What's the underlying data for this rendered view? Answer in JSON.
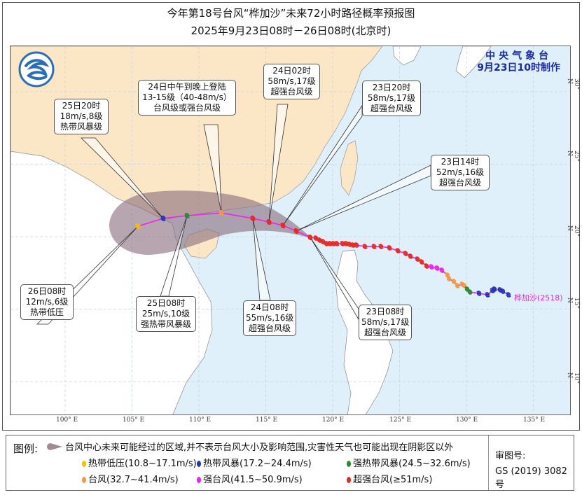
{
  "title": {
    "line1": "今年第18号台风“桦加沙”未来72小时路径概率预报图",
    "line2": "2025年9月23日08时－26日08时(北京时)"
  },
  "agency": {
    "name": "中央气象台",
    "issued": "9月23日10时制作",
    "logo": "cma-logo"
  },
  "storm_label": "桦加沙(2518)",
  "axes": {
    "lon_ticks": [
      "100° E",
      "105° E",
      "110° E",
      "115° E",
      "120° E",
      "125° E",
      "130° E",
      "135° E"
    ],
    "lat_ticks": [
      "30° N",
      "25° N",
      "20° N",
      "15° N",
      "10° N"
    ]
  },
  "colors": {
    "td": "#f2c200",
    "ts": "#2233bb",
    "sts": "#2a8a2a",
    "ty": "#f59a40",
    "sty": "#ee22ee",
    "super": "#e8261e",
    "track": "#ee22ee",
    "cone": "#8a6f80",
    "sea": "#dff0fa",
    "china_land": "#fbe6c5",
    "other_land": "#ffffff"
  },
  "forecast": [
    {
      "time": "26日08时",
      "speed": "12m/s,6级",
      "level": "热带低压",
      "cat": "td",
      "lon": 105.45,
      "lat": 20.72
    },
    {
      "time": "25日20时",
      "speed": "18m/s,8级",
      "level": "热带风暴级",
      "cat": "ts",
      "lon": 107.33,
      "lat": 21.26
    },
    {
      "time": "25日08时",
      "speed": "25m/s,10级",
      "level": "强热带风暴级",
      "cat": "sts",
      "lon": 109.11,
      "lat": 21.45
    },
    {
      "time": "24日中午到晚上登陆",
      "speed": "13-15级（40-48m/s）",
      "level": "台风级或强台风级",
      "cat": "ty",
      "lon": 111.68,
      "lat": 21.64
    },
    {
      "time": "24日08时",
      "speed": "55m/s,16级",
      "level": "超强台风级",
      "cat": "super",
      "lon": 114.03,
      "lat": 21.26
    },
    {
      "time": "24日02时",
      "speed": "58m/s,17级",
      "level": "超强台风级",
      "cat": "super",
      "lon": 115.24,
      "lat": 21.01
    },
    {
      "time": "23日20时",
      "speed": "58m/s,17级",
      "level": "超强台风级",
      "cat": "super",
      "lon": 116.28,
      "lat": 20.77
    },
    {
      "time": "23日14时",
      "speed": "52m/s,16级",
      "level": "超强台风级",
      "cat": "super",
      "lon": 117.28,
      "lat": 20.39
    },
    {
      "time": "23日08时",
      "speed": "58m/s,17级",
      "level": "超强台风级",
      "cat": "super",
      "lon": 118.32,
      "lat": 19.95
    }
  ],
  "past_track": [
    {
      "cat": "super",
      "lon": 118.74,
      "lat": 19.9
    },
    {
      "cat": "super",
      "lon": 119.01,
      "lat": 19.76
    },
    {
      "cat": "super",
      "lon": 119.27,
      "lat": 19.66
    },
    {
      "cat": "super",
      "lon": 119.53,
      "lat": 19.52
    },
    {
      "cat": "super",
      "lon": 119.79,
      "lat": 19.52
    },
    {
      "cat": "super",
      "lon": 120.05,
      "lat": 19.52
    },
    {
      "cat": "super",
      "lon": 120.31,
      "lat": 19.52
    },
    {
      "cat": "super",
      "lon": 120.73,
      "lat": 19.52
    },
    {
      "cat": "super",
      "lon": 121.0,
      "lat": 19.52
    },
    {
      "cat": "super",
      "lon": 121.26,
      "lat": 19.47
    },
    {
      "cat": "super",
      "lon": 121.52,
      "lat": 19.42
    },
    {
      "cat": "super",
      "lon": 121.78,
      "lat": 19.42
    },
    {
      "cat": "super",
      "lon": 122.41,
      "lat": 19.32
    },
    {
      "cat": "super",
      "lon": 123.09,
      "lat": 19.32
    },
    {
      "cat": "super",
      "lon": 123.61,
      "lat": 19.32
    },
    {
      "cat": "super",
      "lon": 124.24,
      "lat": 19.23
    },
    {
      "cat": "super",
      "lon": 124.87,
      "lat": 19.03
    },
    {
      "cat": "super",
      "lon": 125.45,
      "lat": 18.84
    },
    {
      "cat": "super",
      "lon": 125.81,
      "lat": 18.65
    },
    {
      "cat": "super",
      "lon": 126.34,
      "lat": 18.45
    },
    {
      "cat": "super",
      "lon": 126.65,
      "lat": 18.26
    },
    {
      "cat": "super",
      "lon": 127.02,
      "lat": 17.97
    },
    {
      "cat": "sty",
      "lon": 127.38,
      "lat": 17.92
    },
    {
      "cat": "sty",
      "lon": 127.8,
      "lat": 17.83
    },
    {
      "cat": "sty",
      "lon": 128.17,
      "lat": 17.68
    },
    {
      "cat": "ty",
      "lon": 128.59,
      "lat": 17.34
    },
    {
      "cat": "ty",
      "lon": 128.69,
      "lat": 17.1
    },
    {
      "cat": "ty",
      "lon": 129.06,
      "lat": 16.91
    },
    {
      "cat": "ty",
      "lon": 129.32,
      "lat": 16.62
    },
    {
      "cat": "ty",
      "lon": 129.69,
      "lat": 16.71
    },
    {
      "cat": "ty",
      "lon": 129.84,
      "lat": 16.62
    },
    {
      "cat": "sts",
      "lon": 130.05,
      "lat": 16.38
    },
    {
      "cat": "sts",
      "lon": 130.26,
      "lat": 16.18
    },
    {
      "cat": "ts",
      "lon": 130.94,
      "lat": 16.09
    },
    {
      "cat": "ts",
      "lon": 131.57,
      "lat": 15.99
    },
    {
      "cat": "ts",
      "lon": 131.94,
      "lat": 16.28
    },
    {
      "cat": "ts",
      "lon": 132.09,
      "lat": 16.38
    },
    {
      "cat": "ts",
      "lon": 132.51,
      "lat": 16.33
    },
    {
      "cat": "ts",
      "lon": 132.72,
      "lat": 16.23
    },
    {
      "cat": "ts",
      "lon": 133.14,
      "lat": 15.99
    }
  ],
  "legend": {
    "title": "图例:",
    "cone_text": "台风中心未来可能经过的区域,并不表示台风大小及影响范围,灾害性天气也可能出现在阴影区以外",
    "items": [
      {
        "label": "热带低压(10.8~17.1m/s)",
        "cat": "td"
      },
      {
        "label": "热带风暴(17.2~24.4m/s)",
        "cat": "ts"
      },
      {
        "label": "强热带风暴(24.5~32.6m/s)",
        "cat": "sts"
      },
      {
        "label": "台风(32.7~41.4m/s)",
        "cat": "ty"
      },
      {
        "label": "强台风(41.5~50.9m/s)",
        "cat": "sty"
      },
      {
        "label": "超强台风(≥51m/s)",
        "cat": "super"
      }
    ],
    "review_label": "审图号:",
    "review_number": "GS (2019) 3082号"
  }
}
